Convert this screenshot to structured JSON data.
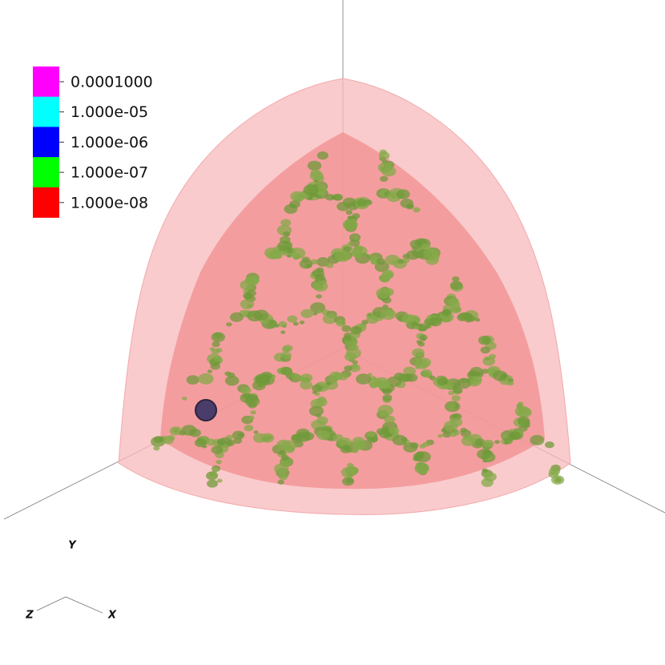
{
  "legend": [
    {
      "label": "0.0001000",
      "color": "#ff00ff"
    },
    {
      "label": "1.000e-05",
      "color": "#00ffff"
    },
    {
      "label": "1.000e-06",
      "color": "#0000ff"
    },
    {
      "label": "1.000e-07",
      "color": "#00ff00"
    },
    {
      "label": "1.000e-08",
      "color": "#ff0000"
    }
  ],
  "axes": {
    "y": "Y",
    "z": "Z",
    "x": "X"
  }
}
